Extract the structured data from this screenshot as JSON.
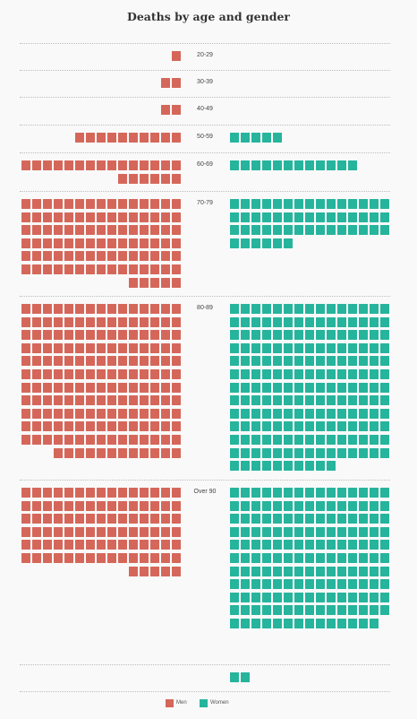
{
  "chart_data": {
    "type": "waffle",
    "title": "Deaths by age and gender",
    "unit_per_square": 1,
    "series": [
      {
        "name": "Men",
        "color": "#d5675a"
      },
      {
        "name": "Women",
        "color": "#26b49c"
      }
    ],
    "categories": [
      "20-29",
      "30-39",
      "40-49",
      "50-59",
      "60-69",
      "70-79",
      "80-89",
      "Over 90",
      ""
    ],
    "groups": [
      {
        "label": "20-29",
        "men": 1,
        "women": 0
      },
      {
        "label": "30-39",
        "men": 2,
        "women": 0
      },
      {
        "label": "40-49",
        "men": 2,
        "women": 0
      },
      {
        "label": "50-59",
        "men": 10,
        "women": 5
      },
      {
        "label": "60-69",
        "men": 21,
        "women": 12
      },
      {
        "label": "70-79",
        "men": 95,
        "women": 51
      },
      {
        "label": "80-89",
        "men": 177,
        "women": 190
      },
      {
        "label": "Over 90",
        "men": 95,
        "women": 164
      },
      {
        "label": "",
        "men": 0,
        "women": 2
      }
    ],
    "legend": {
      "position": "bottom-center",
      "labels": [
        "Men",
        "Women"
      ]
    }
  }
}
